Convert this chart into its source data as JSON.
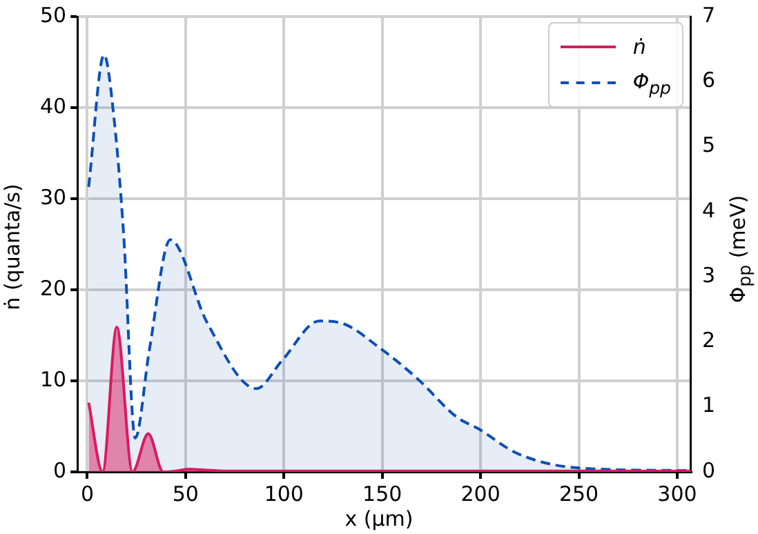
{
  "chart_data": {
    "type": "area",
    "xlabel": "x (µm)",
    "ylabel": "ṅ (quanta/s)",
    "y2label": "Φ$_{pp}$ (meV)",
    "xlim": [
      -5,
      307
    ],
    "xticks": [
      0,
      50,
      100,
      150,
      200,
      250,
      300
    ],
    "ylim": [
      0,
      50
    ],
    "yticks": [
      0,
      10,
      20,
      30,
      40,
      50
    ],
    "y2lim": [
      0,
      7
    ],
    "y2ticks": [
      0,
      1,
      2,
      3,
      4,
      5,
      6,
      7
    ],
    "grid": true,
    "legend": "top right",
    "marker": "none",
    "series": [
      {
        "name": "ṅ",
        "color": "#d81b60",
        "line_style": "solid",
        "x": [
          0.7,
          7.8,
          15,
          23,
          31,
          38.6,
          45,
          52,
          60,
          70,
          100,
          150,
          200,
          250,
          307
        ],
        "values": [
          7.6,
          0,
          15.9,
          0,
          4.2,
          0,
          0.1,
          0.3,
          0.2,
          0.1,
          0.1,
          0.1,
          0.1,
          0.1,
          0.1
        ]
      },
      {
        "name": "Φ$_{pp}$",
        "color": "#0d4fb5",
        "line_style": "dashed",
        "axis": "y2",
        "x": [
          0.7,
          8.5,
          13.8,
          18.5,
          24.4,
          31.5,
          42.2,
          61,
          86,
          99,
          118,
          129,
          149,
          168,
          188,
          198.5,
          219,
          250,
          307
        ],
        "values": [
          4.38,
          6.41,
          5.38,
          3.65,
          0.52,
          1.86,
          3.57,
          2.29,
          1.28,
          1.71,
          2.32,
          2.29,
          1.9,
          1.43,
          0.84,
          0.67,
          0.28,
          0.06,
          0.02
        ]
      }
    ]
  }
}
